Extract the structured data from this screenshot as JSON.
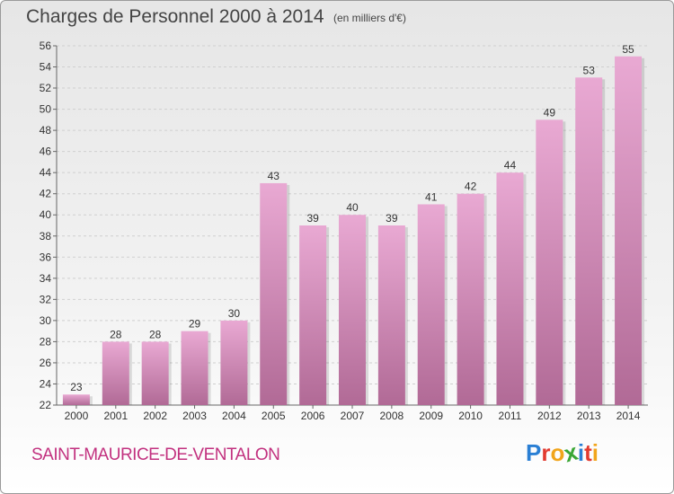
{
  "chart_data": {
    "type": "bar",
    "title": "Charges de Personnel 2000 à 2014",
    "unit_note": "(en milliers d'€)",
    "categories": [
      "2000",
      "2001",
      "2002",
      "2003",
      "2004",
      "2005",
      "2006",
      "2007",
      "2008",
      "2009",
      "2010",
      "2011",
      "2012",
      "2013",
      "2014"
    ],
    "values": [
      23,
      28,
      28,
      29,
      30,
      43,
      39,
      40,
      39,
      41,
      42,
      44,
      49,
      53,
      55
    ],
    "ylim": [
      22,
      56
    ],
    "yticks": [
      22,
      24,
      26,
      28,
      30,
      32,
      34,
      36,
      38,
      40,
      42,
      44,
      46,
      48,
      50,
      52,
      54,
      56
    ],
    "grid": true,
    "bar_color_top": "#e9a9d3",
    "bar_color_bottom": "#b16a96"
  },
  "footer": {
    "town": "SAINT-MAURICE-DE-VENTALON",
    "logo_letters": [
      "P",
      "r",
      "o",
      "x",
      "i",
      "t",
      "i"
    ],
    "logo_colors": [
      "#2a7fd4",
      "#e23a2f",
      "#f1a51b",
      "#3aa635",
      "#2a7fd4",
      "#e23a2f",
      "#f1a51b"
    ]
  }
}
